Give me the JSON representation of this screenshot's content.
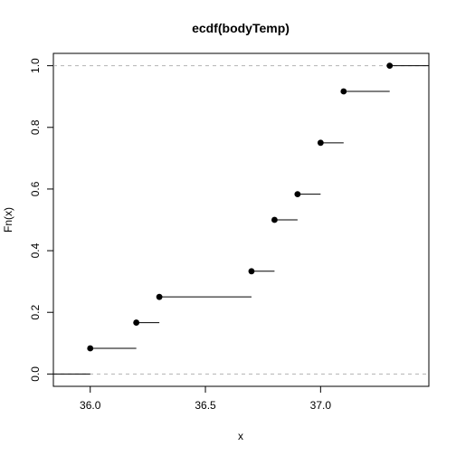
{
  "chart_data": {
    "type": "step",
    "title": "ecdf(bodyTemp)",
    "xlabel": "x",
    "ylabel": "Fn(x)",
    "xlim": [
      35.84,
      37.47
    ],
    "ylim": [
      -0.04,
      1.04
    ],
    "x_ticks": [
      36.0,
      36.5,
      37.0
    ],
    "x_tick_labels": [
      "36.0",
      "36.5",
      "37.0"
    ],
    "y_ticks": [
      0.0,
      0.2,
      0.4,
      0.6,
      0.8,
      1.0
    ],
    "y_tick_labels": [
      "0.0",
      "0.2",
      "0.4",
      "0.6",
      "0.8",
      "1.0"
    ],
    "reference_lines": [
      0.0,
      1.0
    ],
    "points": [
      {
        "x": 36.0,
        "y": 0.0833
      },
      {
        "x": 36.2,
        "y": 0.1667
      },
      {
        "x": 36.3,
        "y": 0.25
      },
      {
        "x": 36.7,
        "y": 0.3333
      },
      {
        "x": 36.8,
        "y": 0.5
      },
      {
        "x": 36.9,
        "y": 0.5833
      },
      {
        "x": 37.0,
        "y": 0.75
      },
      {
        "x": 37.1,
        "y": 0.9167
      },
      {
        "x": 37.3,
        "y": 1.0
      }
    ]
  }
}
